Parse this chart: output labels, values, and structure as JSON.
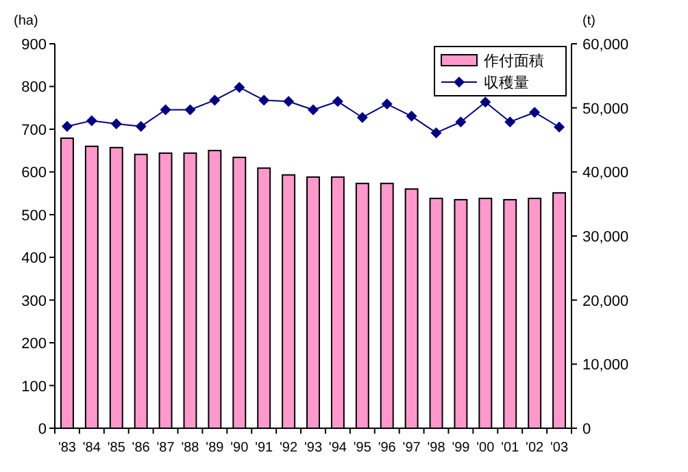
{
  "chart_data": {
    "type": "bar",
    "ylabel": "(ha)",
    "y2label": "(t)",
    "categories": [
      "'83",
      "'84",
      "'85",
      "'86",
      "'87",
      "'88",
      "'89",
      "'90",
      "'91",
      "'92",
      "'93",
      "'94",
      "'95",
      "'96",
      "'97",
      "'98",
      "'99",
      "'00",
      "'01",
      "'02",
      "'03"
    ],
    "series": [
      {
        "name": "作付面積",
        "color": "#ff99cc",
        "values": [
          679,
          660,
          657,
          641,
          644,
          644,
          650,
          634,
          609,
          593,
          588,
          588,
          573,
          573,
          560,
          538,
          535,
          538,
          535,
          538,
          551
        ]
      },
      {
        "name": "収穫量",
        "type": "line",
        "axis": "y2",
        "color": "#000080",
        "marker": "diamond",
        "values": [
          47100,
          48000,
          47500,
          47100,
          49700,
          49700,
          51200,
          53200,
          51200,
          51000,
          49700,
          51000,
          48500,
          50600,
          48700,
          46100,
          47800,
          50900,
          47800,
          49300,
          47000
        ]
      }
    ],
    "ylim": [
      0,
      900
    ],
    "yticks": [
      0,
      100,
      200,
      300,
      400,
      500,
      600,
      700,
      800,
      900
    ],
    "y2lim": [
      0,
      60000
    ],
    "y2ticks": [
      0,
      {
        "value": 10000,
        "label": "10,000"
      },
      {
        "value": 20000,
        "label": "20,000"
      },
      {
        "value": 30000,
        "label": "30,000"
      },
      {
        "value": 40000,
        "label": "40,000"
      },
      {
        "value": 50000,
        "label": "50,000"
      },
      {
        "value": 60000,
        "label": "60,000"
      }
    ],
    "legend": "top right",
    "grid": false
  }
}
